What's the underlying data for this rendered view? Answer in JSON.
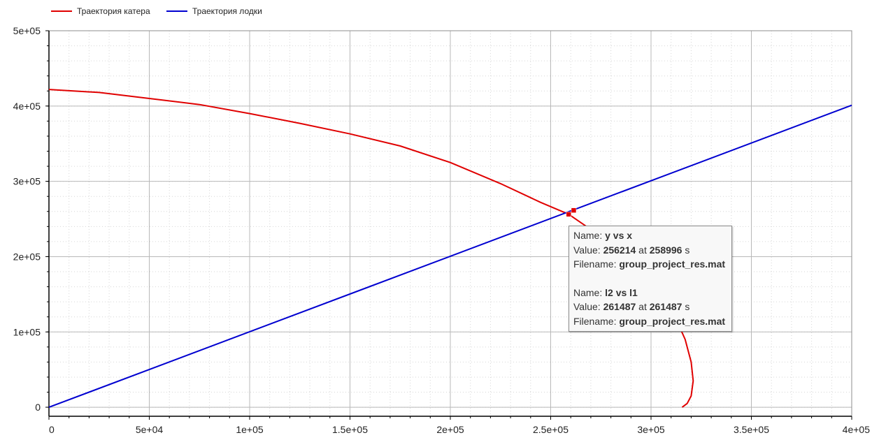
{
  "colors": {
    "boat_catcher": "#e00000",
    "boat": "#0000d0",
    "grid": "#b8b8b8",
    "minor_grid": "#d6d6d6"
  },
  "legend": [
    {
      "label": "Траектория катера",
      "color": "#e00000"
    },
    {
      "label": "Траектория лодки",
      "color": "#0000d0"
    }
  ],
  "chart_data": {
    "type": "line",
    "xlim": [
      0,
      400000
    ],
    "ylim": [
      -12000,
      500000
    ],
    "x_ticks": [
      0,
      50000,
      100000,
      150000,
      200000,
      250000,
      300000,
      350000,
      400000
    ],
    "x_tick_labels": [
      "0",
      "5e+04",
      "1e+05",
      "1.5e+05",
      "2e+05",
      "2.5e+05",
      "3e+05",
      "3.5e+05",
      "4e+05"
    ],
    "y_ticks": [
      0,
      100000,
      200000,
      300000,
      400000,
      500000
    ],
    "y_tick_labels": [
      "0",
      "1e+05",
      "2e+05",
      "3e+05",
      "4e+05",
      "5e+05"
    ],
    "grid": true,
    "legend_position": "top-left",
    "series": [
      {
        "name": "Траектория катера",
        "color": "#e00000",
        "x": [
          0,
          25000,
          50000,
          75000,
          100000,
          125000,
          150000,
          175000,
          200000,
          225000,
          245000,
          259000,
          270000,
          282000,
          295000,
          305000,
          312000,
          317000,
          320000,
          321000,
          320000,
          318000,
          315500
        ],
        "y": [
          422000,
          418000,
          410000,
          402000,
          390000,
          377000,
          363000,
          347000,
          325000,
          297000,
          272000,
          256214,
          236000,
          210000,
          180000,
          150000,
          120000,
          90000,
          60000,
          35000,
          15000,
          5000,
          0
        ]
      },
      {
        "name": "Траектория лодки",
        "color": "#0000d0",
        "x": [
          0,
          400000
        ],
        "y": [
          0,
          401000
        ]
      }
    ],
    "markers": [
      {
        "x": 258996,
        "y": 256214,
        "color": "#e00000"
      },
      {
        "x": 261487,
        "y": 261487,
        "color": "#e00000"
      }
    ]
  },
  "tooltip": {
    "entries": [
      {
        "name_label": "Name:",
        "name": "y vs x",
        "value_label": "Value:",
        "value": "256214",
        "at_label": "at",
        "time": "258996",
        "unit": "s",
        "filename_label": "Filename:",
        "filename": "group_project_res.mat"
      },
      {
        "name_label": "Name:",
        "name": "l2 vs l1",
        "value_label": "Value:",
        "value": "261487",
        "at_label": "at",
        "time": "261487",
        "unit": "s",
        "filename_label": "Filename:",
        "filename": "group_project_res.mat"
      }
    ]
  }
}
